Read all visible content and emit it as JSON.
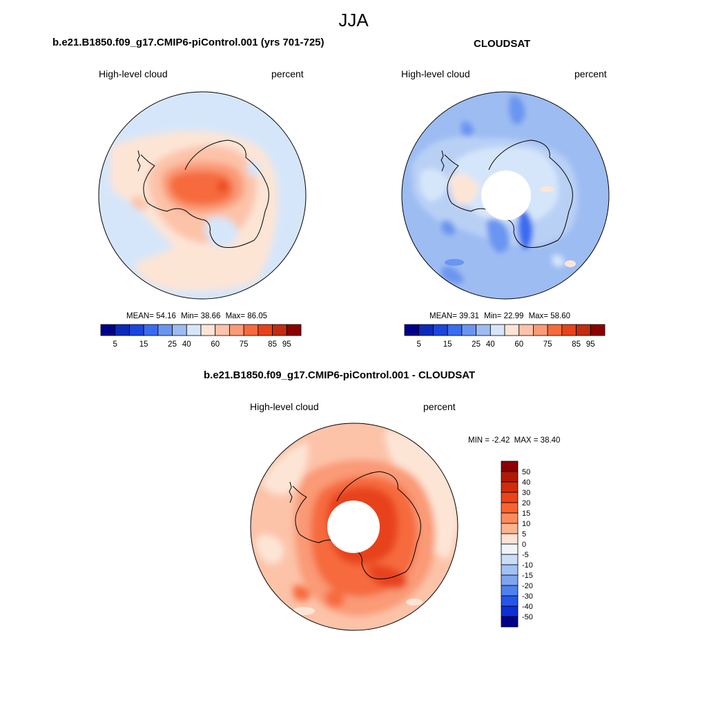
{
  "page_title": "JJA",
  "chart_data": [
    {
      "type": "heatmap",
      "id": "model",
      "title": "b.e21.B1850.f09_g17.CMIP6-piControl.001 (yrs 701-725)",
      "left_label": "High-level cloud",
      "right_label": "percent",
      "stats": {
        "mean_label": "MEAN=",
        "mean": "54.16",
        "min_label": "Min=",
        "min": "38.66",
        "max_label": "Max=",
        "max": "86.05"
      },
      "colorbar": {
        "orientation": "horizontal",
        "tick_labels": [
          "5",
          "15",
          "25",
          "40",
          "60",
          "75",
          "85",
          "95"
        ],
        "colors": [
          "#00008b",
          "#0a2bb8",
          "#1a46dd",
          "#3a6cf0",
          "#6a95f0",
          "#9dbcf2",
          "#d6e6fa",
          "#fde5d6",
          "#fcc3a9",
          "#fa9a76",
          "#f66a3d",
          "#e8421c",
          "#c22c10",
          "#8b0000"
        ]
      }
    },
    {
      "type": "heatmap",
      "id": "obs",
      "title": "CLOUDSAT",
      "left_label": "High-level cloud",
      "right_label": "percent",
      "stats": {
        "mean_label": "MEAN=",
        "mean": "39.31",
        "min_label": "Min=",
        "min": "22.99",
        "max_label": "Max=",
        "max": "58.60"
      },
      "colorbar": {
        "orientation": "horizontal",
        "tick_labels": [
          "5",
          "15",
          "25",
          "40",
          "60",
          "75",
          "85",
          "95"
        ],
        "colors": [
          "#00008b",
          "#0a2bb8",
          "#1a46dd",
          "#3a6cf0",
          "#6a95f0",
          "#9dbcf2",
          "#d6e6fa",
          "#fde5d6",
          "#fcc3a9",
          "#fa9a76",
          "#f66a3d",
          "#e8421c",
          "#c22c10",
          "#8b0000"
        ]
      }
    },
    {
      "type": "heatmap",
      "id": "diff",
      "title": "b.e21.B1850.f09_g17.CMIP6-piControl.001 - CLOUDSAT",
      "left_label": "High-level cloud",
      "right_label": "percent",
      "stats": {
        "min_label": "MIN =",
        "min": "-2.42",
        "max_label": "MAX =",
        "max": "38.40"
      },
      "colorbar": {
        "orientation": "vertical",
        "tick_labels": [
          "50",
          "40",
          "30",
          "20",
          "15",
          "10",
          "5",
          "0",
          "-5",
          "-10",
          "-15",
          "-20",
          "-30",
          "-40",
          "-50"
        ],
        "colors": [
          "#8b0000",
          "#b01a05",
          "#d22b0b",
          "#ee4217",
          "#f9642e",
          "#fb8c5e",
          "#fcb38f",
          "#fde3d3",
          "#eef4fd",
          "#c9ddf8",
          "#a3c2f4",
          "#7ea5ef",
          "#4f81ec",
          "#2555e8",
          "#0c2fd6",
          "#00008b"
        ]
      }
    }
  ]
}
